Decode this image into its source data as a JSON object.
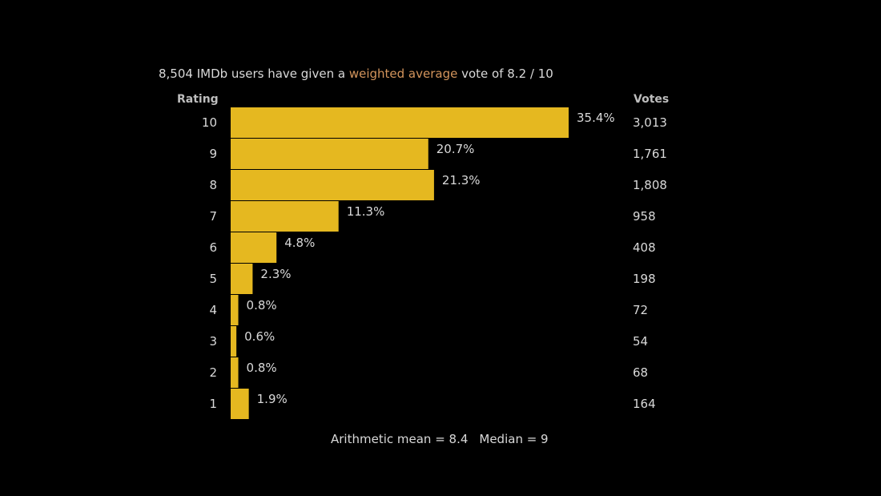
{
  "summary": {
    "prefix": "8,504 IMDb users have given a ",
    "link": "weighted average",
    "suffix": " vote of 8.2 / 10"
  },
  "headers": {
    "rating": "Rating",
    "votes": "Votes"
  },
  "stats": {
    "mean": "Arithmetic mean = 8.4",
    "median": "Median = 9"
  },
  "colors": {
    "bar": "#e5b820",
    "background": "#000000",
    "text": "#d9d9d9",
    "link": "#d4955c"
  },
  "chart_data": {
    "type": "bar",
    "orientation": "horizontal",
    "categories": [
      "10",
      "9",
      "8",
      "7",
      "6",
      "5",
      "4",
      "3",
      "2",
      "1"
    ],
    "values": [
      35.4,
      20.7,
      21.3,
      11.3,
      4.8,
      2.3,
      0.8,
      0.6,
      0.8,
      1.9
    ],
    "value_labels": [
      "35.4%",
      "20.7%",
      "21.3%",
      "11.3%",
      "4.8%",
      "2.3%",
      "0.8%",
      "0.6%",
      "0.8%",
      "1.9%"
    ],
    "votes": [
      "3,013",
      "1,761",
      "1,808",
      "958",
      "408",
      "198",
      "72",
      "54",
      "68",
      "164"
    ],
    "xlim": [
      0,
      35.4
    ],
    "xlabel": "",
    "ylabel": "Rating",
    "grid": false
  }
}
